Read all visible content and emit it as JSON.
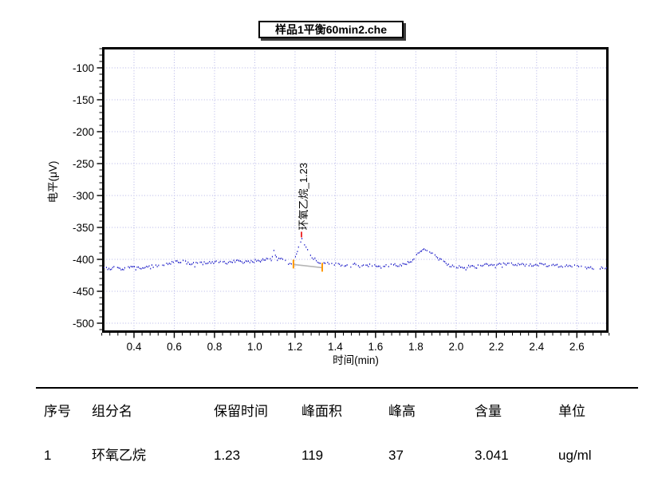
{
  "chart_data": {
    "type": "line",
    "title": "样品1平衡60min2.che",
    "xlabel": "时间(min)",
    "ylabel": "电平(μV)",
    "xlim": [
      0.24,
      2.76
    ],
    "ylim": [
      -515,
      -67.5
    ],
    "x_ticks": [
      0.4,
      0.6,
      0.8,
      1.0,
      1.2,
      1.4,
      1.6,
      1.8,
      2.0,
      2.2,
      2.4,
      2.6
    ],
    "y_ticks": [
      -100,
      -150,
      -200,
      -250,
      -300,
      -350,
      -400,
      -450,
      -500
    ],
    "x_minor_step": 0.04,
    "y_minor_step": 10,
    "grid": "dotted",
    "legend": "none",
    "colors": {
      "trace": "#1f1fc8",
      "grid": "#b3b3e6",
      "axis": "#000000",
      "apex_marker": "#e90000",
      "integration_marker": "#ff9900",
      "peak_baseline": "#b5b5b5"
    },
    "series": [
      {
        "name": "chromatogram",
        "anchors": [
          [
            0.242,
            -415
          ],
          [
            0.28,
            -416
          ],
          [
            0.31,
            -413
          ],
          [
            0.34,
            -415
          ],
          [
            0.37,
            -412
          ],
          [
            0.4,
            -414
          ],
          [
            0.44,
            -413
          ],
          [
            0.48,
            -412
          ],
          [
            0.52,
            -410
          ],
          [
            0.56,
            -407
          ],
          [
            0.6,
            -404
          ],
          [
            0.63,
            -403
          ],
          [
            0.66,
            -405
          ],
          [
            0.7,
            -407
          ],
          [
            0.74,
            -406
          ],
          [
            0.78,
            -405
          ],
          [
            0.82,
            -404
          ],
          [
            0.86,
            -405
          ],
          [
            0.9,
            -403
          ],
          [
            0.94,
            -404
          ],
          [
            0.98,
            -403
          ],
          [
            1.02,
            -402
          ],
          [
            1.05,
            -401
          ],
          [
            1.075,
            -399
          ],
          [
            1.085,
            -396
          ],
          [
            1.093,
            -387
          ],
          [
            1.1,
            -393
          ],
          [
            1.11,
            -400
          ],
          [
            1.13,
            -398
          ],
          [
            1.15,
            -403
          ],
          [
            1.165,
            -406
          ],
          [
            1.18,
            -409
          ],
          [
            1.192,
            -406
          ],
          [
            1.2,
            -398
          ],
          [
            1.21,
            -388
          ],
          [
            1.22,
            -376
          ],
          [
            1.232,
            -368
          ],
          [
            1.245,
            -377
          ],
          [
            1.26,
            -386
          ],
          [
            1.275,
            -394
          ],
          [
            1.29,
            -399
          ],
          [
            1.31,
            -403
          ],
          [
            1.335,
            -407
          ],
          [
            1.36,
            -406
          ],
          [
            1.4,
            -408
          ],
          [
            1.45,
            -409
          ],
          [
            1.5,
            -408
          ],
          [
            1.55,
            -410
          ],
          [
            1.6,
            -409
          ],
          [
            1.65,
            -410
          ],
          [
            1.7,
            -409
          ],
          [
            1.74,
            -408
          ],
          [
            1.77,
            -404
          ],
          [
            1.795,
            -396
          ],
          [
            1.815,
            -389
          ],
          [
            1.838,
            -384
          ],
          [
            1.86,
            -387
          ],
          [
            1.88,
            -391
          ],
          [
            1.9,
            -396
          ],
          [
            1.93,
            -403
          ],
          [
            1.96,
            -409
          ],
          [
            2.0,
            -411
          ],
          [
            2.04,
            -412
          ],
          [
            2.08,
            -411
          ],
          [
            2.12,
            -409
          ],
          [
            2.18,
            -408
          ],
          [
            2.24,
            -407
          ],
          [
            2.3,
            -408
          ],
          [
            2.36,
            -409
          ],
          [
            2.42,
            -408
          ],
          [
            2.48,
            -410
          ],
          [
            2.54,
            -410
          ],
          [
            2.6,
            -411
          ],
          [
            2.66,
            -413
          ],
          [
            2.72,
            -414
          ],
          [
            2.757,
            -416
          ]
        ]
      }
    ],
    "peak": {
      "label": "环氧乙烷_1.23",
      "apex": {
        "t": 1.232,
        "uv": -368
      },
      "start": {
        "t": 1.192,
        "uv": -408
      },
      "end": {
        "t": 1.335,
        "uv": -413
      }
    }
  },
  "results_table": {
    "headers": [
      "序号",
      "组分名",
      "保留时间",
      "峰面积",
      "峰高",
      "含量",
      "单位"
    ],
    "rows": [
      [
        "1",
        "环氧乙烷",
        "1.23",
        "119",
        "37",
        "3.041",
        "ug/ml"
      ]
    ]
  }
}
